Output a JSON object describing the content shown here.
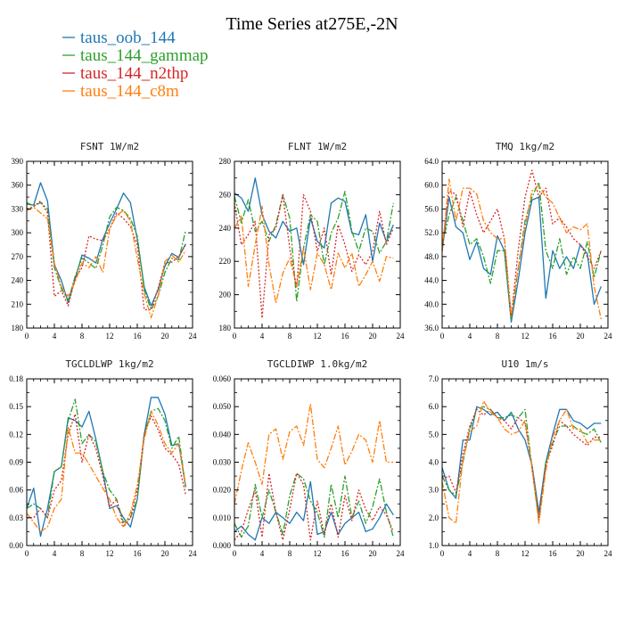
{
  "title": "Time Series at275E,-2N",
  "legend": [
    {
      "name": "taus_oob_144",
      "color": "#1f77b4",
      "dash": "solid"
    },
    {
      "name": "taus_144_gammap",
      "color": "#2ca02c",
      "dash": "dashdot"
    },
    {
      "name": "taus_144_n2thp",
      "color": "#d62728",
      "dash": "dot"
    },
    {
      "name": "taus_144_c8m",
      "color": "#ff7f0e",
      "dash": "dashdot"
    }
  ],
  "chart_data": [
    {
      "type": "line",
      "title": "FSNT   1W/m2",
      "xlim": [
        0,
        24
      ],
      "ylim": [
        180,
        390
      ],
      "xticks": [
        "0",
        "4",
        "8",
        "12",
        "16",
        "20",
        "24"
      ],
      "xtick_values": [
        0,
        4,
        8,
        12,
        16,
        20,
        24
      ],
      "yticks": [
        "180",
        "210",
        "240",
        "270",
        "300",
        "330",
        "360",
        "390"
      ],
      "ytick_values": [
        180,
        210,
        240,
        270,
        300,
        330,
        360,
        390
      ],
      "x": [
        0,
        1,
        2,
        3,
        4,
        5,
        6,
        7,
        8,
        9,
        10,
        11,
        12,
        13,
        14,
        15,
        16,
        17,
        18,
        19,
        20,
        21,
        22,
        23
      ],
      "series": [
        {
          "name": "taus_oob_144",
          "values": [
            336,
            335,
            363,
            340,
            260,
            240,
            212,
            242,
            272,
            268,
            262,
            292,
            312,
            330,
            350,
            338,
            292,
            232,
            208,
            228,
            258,
            274,
            269,
            286
          ]
        },
        {
          "name": "taus_144_gammap",
          "values": [
            338,
            334,
            338,
            330,
            256,
            230,
            215,
            245,
            268,
            262,
            255,
            284,
            320,
            332,
            328,
            318,
            296,
            228,
            203,
            220,
            250,
            268,
            266,
            303
          ]
        },
        {
          "name": "taus_144_n2thp",
          "values": [
            330,
            333,
            340,
            325,
            220,
            227,
            208,
            243,
            256,
            296,
            292,
            290,
            305,
            325,
            318,
            308,
            285,
            203,
            203,
            230,
            262,
            263,
            270,
            285
          ]
        },
        {
          "name": "taus_144_c8m",
          "values": [
            328,
            332,
            325,
            318,
            262,
            232,
            220,
            238,
            262,
            256,
            270,
            250,
            305,
            322,
            328,
            315,
            268,
            223,
            193,
            220,
            264,
            272,
            263,
            278
          ]
        }
      ]
    },
    {
      "type": "line",
      "title": "FLNT   1W/m2",
      "xlim": [
        0,
        24
      ],
      "ylim": [
        180,
        280
      ],
      "xticks": [
        "0",
        "4",
        "8",
        "12",
        "16",
        "20",
        "24"
      ],
      "xtick_values": [
        0,
        4,
        8,
        12,
        16,
        20,
        24
      ],
      "yticks": [
        "180",
        "200",
        "220",
        "240",
        "260",
        "280"
      ],
      "ytick_values": [
        180,
        200,
        220,
        240,
        260,
        280
      ],
      "x": [
        0,
        1,
        2,
        3,
        4,
        5,
        6,
        7,
        8,
        9,
        10,
        11,
        12,
        13,
        14,
        15,
        16,
        17,
        18,
        19,
        20,
        21,
        22,
        23
      ],
      "series": [
        {
          "name": "taus_oob_144",
          "values": [
            261,
            258,
            250,
            270,
            248,
            238,
            234,
            244,
            238,
            240,
            218,
            246,
            232,
            228,
            255,
            258,
            256,
            237,
            236,
            248,
            220,
            243,
            232,
            242
          ]
        },
        {
          "name": "taus_144_gammap",
          "values": [
            259,
            243,
            257,
            238,
            244,
            232,
            242,
            260,
            246,
            196,
            228,
            248,
            244,
            218,
            237,
            246,
            262,
            238,
            226,
            240,
            238,
            225,
            232,
            255
          ]
        },
        {
          "name": "taus_144_n2thp",
          "values": [
            255,
            230,
            236,
            244,
            186,
            236,
            240,
            260,
            228,
            204,
            260,
            250,
            226,
            240,
            212,
            242,
            230,
            214,
            224,
            218,
            226,
            250,
            230,
            240
          ]
        },
        {
          "name": "taus_144_c8m",
          "values": [
            240,
            247,
            205,
            230,
            253,
            218,
            195,
            213,
            222,
            205,
            228,
            203,
            225,
            218,
            203,
            225,
            216,
            225,
            205,
            212,
            220,
            208,
            223,
            222
          ]
        }
      ]
    },
    {
      "type": "line",
      "title": "TMQ   1kg/m2",
      "xlim": [
        0,
        24
      ],
      "ylim": [
        36,
        64
      ],
      "xticks": [
        "0",
        "4",
        "8",
        "12",
        "16",
        "20",
        "24"
      ],
      "xtick_values": [
        0,
        4,
        8,
        12,
        16,
        20,
        24
      ],
      "yticks": [
        "36.0",
        "40.0",
        "44.0",
        "48.0",
        "52.0",
        "56.0",
        "60.0",
        "64.0"
      ],
      "ytick_values": [
        36,
        40,
        44,
        48,
        52,
        56,
        60,
        64
      ],
      "x": [
        0,
        1,
        2,
        3,
        4,
        5,
        6,
        7,
        8,
        9,
        10,
        11,
        12,
        13,
        14,
        15,
        16,
        17,
        18,
        19,
        20,
        21,
        22,
        23
      ],
      "series": [
        {
          "name": "taus_oob_144",
          "values": [
            49,
            58,
            53,
            52,
            47.5,
            50.5,
            46,
            45,
            51.5,
            49,
            37,
            44,
            52,
            57.5,
            58,
            41,
            49,
            46,
            48,
            46,
            50,
            48.5,
            40,
            43
          ]
        },
        {
          "name": "taus_144_gammap",
          "values": [
            50,
            55,
            58,
            54,
            50,
            51,
            48,
            43.5,
            49,
            49,
            37.5,
            46,
            54,
            58,
            60.5,
            49,
            46,
            51,
            45,
            48,
            46,
            50.5,
            44.5,
            49
          ]
        },
        {
          "name": "taus_144_n2thp",
          "values": [
            49,
            59,
            58.5,
            53,
            59,
            55,
            52,
            54,
            56,
            51,
            38,
            49,
            58,
            62.5,
            58,
            59.5,
            53.5,
            54.5,
            53,
            51,
            50,
            48,
            46,
            49
          ]
        },
        {
          "name": "taus_144_c8m",
          "values": [
            49,
            61,
            54,
            59.5,
            59.5,
            58.5,
            54,
            52,
            51,
            51,
            38,
            46,
            53,
            59,
            60,
            58,
            57,
            54.5,
            52,
            53,
            52.5,
            53.5,
            43,
            37.5
          ]
        }
      ]
    },
    {
      "type": "line",
      "title": "TGCLDLWP   1kg/m2",
      "xlim": [
        0,
        24
      ],
      "ylim": [
        0,
        0.18
      ],
      "xticks": [
        "0",
        "4",
        "8",
        "12",
        "16",
        "20",
        "24"
      ],
      "xtick_values": [
        0,
        4,
        8,
        12,
        16,
        20,
        24
      ],
      "yticks": [
        "0.00",
        "0.03",
        "0.06",
        "0.09",
        "0.12",
        "0.15",
        "0.18"
      ],
      "ytick_values": [
        0,
        0.03,
        0.06,
        0.09,
        0.12,
        0.15,
        0.18
      ],
      "x": [
        0,
        1,
        2,
        3,
        4,
        5,
        6,
        7,
        8,
        9,
        10,
        11,
        12,
        13,
        14,
        15,
        16,
        17,
        18,
        19,
        20,
        21,
        22,
        23
      ],
      "series": [
        {
          "name": "taus_oob_144",
          "values": [
            0.04,
            0.062,
            0.01,
            0.04,
            0.08,
            0.085,
            0.138,
            0.135,
            0.128,
            0.145,
            0.115,
            0.08,
            0.04,
            0.043,
            0.03,
            0.02,
            0.05,
            0.12,
            0.16,
            0.16,
            0.142,
            0.108,
            0.11,
            0.063
          ]
        },
        {
          "name": "taus_144_gammap",
          "values": [
            0.04,
            0.045,
            0.04,
            0.03,
            0.08,
            0.085,
            0.135,
            0.158,
            0.11,
            0.12,
            0.112,
            0.08,
            0.06,
            0.05,
            0.025,
            0.03,
            0.05,
            0.12,
            0.145,
            0.148,
            0.135,
            0.105,
            0.118,
            0.063
          ]
        },
        {
          "name": "taus_144_n2thp",
          "values": [
            0.03,
            0.03,
            0.04,
            0.03,
            0.06,
            0.07,
            0.12,
            0.142,
            0.09,
            0.12,
            0.105,
            0.075,
            0.042,
            0.05,
            0.02,
            0.03,
            0.06,
            0.12,
            0.14,
            0.125,
            0.105,
            0.098,
            0.088,
            0.055
          ]
        },
        {
          "name": "taus_144_c8m",
          "values": [
            0.035,
            0.025,
            0.015,
            0.02,
            0.04,
            0.05,
            0.128,
            0.1,
            0.1,
            0.088,
            0.075,
            0.062,
            0.05,
            0.03,
            0.02,
            0.035,
            0.065,
            0.115,
            0.145,
            0.13,
            0.11,
            0.1,
            0.11,
            0.065
          ]
        }
      ]
    },
    {
      "type": "line",
      "title": "TGCLDIWP   1.0kg/m2",
      "xlim": [
        0,
        24
      ],
      "ylim": [
        0,
        0.06
      ],
      "xticks": [
        "0",
        "4",
        "8",
        "12",
        "16",
        "20",
        "24"
      ],
      "xtick_values": [
        0,
        4,
        8,
        12,
        16,
        20,
        24
      ],
      "yticks": [
        "0.000",
        "0.010",
        "0.020",
        "0.030",
        "0.040",
        "0.050",
        "0.060"
      ],
      "ytick_values": [
        0,
        0.01,
        0.02,
        0.03,
        0.04,
        0.05,
        0.06
      ],
      "x": [
        0,
        1,
        2,
        3,
        4,
        5,
        6,
        7,
        8,
        9,
        10,
        11,
        12,
        13,
        14,
        15,
        16,
        17,
        18,
        19,
        20,
        21,
        22,
        23
      ],
      "series": [
        {
          "name": "taus_oob_144",
          "values": [
            0.005,
            0.007,
            0.004,
            0.002,
            0.01,
            0.008,
            0.012,
            0.01,
            0.008,
            0.012,
            0.009,
            0.023,
            0.004,
            0.005,
            0.012,
            0.004,
            0.008,
            0.01,
            0.012,
            0.005,
            0.006,
            0.01,
            0.015,
            0.011
          ]
        },
        {
          "name": "taus_144_gammap",
          "values": [
            0.008,
            0.003,
            0.007,
            0.022,
            0.01,
            0.02,
            0.012,
            0.004,
            0.018,
            0.026,
            0.024,
            0.016,
            0.012,
            0.003,
            0.022,
            0.01,
            0.025,
            0.01,
            0.016,
            0.008,
            0.014,
            0.024,
            0.012,
            0.003
          ]
        },
        {
          "name": "taus_144_n2thp",
          "values": [
            0.002,
            0.005,
            0.013,
            0.02,
            0.003,
            0.026,
            0.012,
            0.002,
            0.013,
            0.026,
            0.022,
            0.002,
            0.016,
            0.004,
            0.015,
            0.003,
            0.018,
            0.009,
            0.02,
            0.013,
            0.009,
            0.014,
            0.011,
            0.005
          ]
        },
        {
          "name": "taus_144_c8m",
          "values": [
            0.015,
            0.027,
            0.037,
            0.03,
            0.022,
            0.04,
            0.042,
            0.031,
            0.041,
            0.043,
            0.036,
            0.051,
            0.031,
            0.028,
            0.035,
            0.043,
            0.029,
            0.034,
            0.04,
            0.038,
            0.03,
            0.045,
            0.03,
            0.03
          ]
        }
      ]
    },
    {
      "type": "line",
      "title": "U10   1m/s",
      "xlim": [
        0,
        24
      ],
      "ylim": [
        1,
        7
      ],
      "xticks": [
        "0",
        "4",
        "8",
        "12",
        "16",
        "20",
        "24"
      ],
      "xtick_values": [
        0,
        4,
        8,
        12,
        16,
        20,
        24
      ],
      "yticks": [
        "1.0",
        "2.0",
        "3.0",
        "4.0",
        "5.0",
        "6.0",
        "7.0"
      ],
      "ytick_values": [
        1,
        2,
        3,
        4,
        5,
        6,
        7
      ],
      "x": [
        0,
        1,
        2,
        3,
        4,
        5,
        6,
        7,
        8,
        9,
        10,
        11,
        12,
        13,
        14,
        15,
        16,
        17,
        18,
        19,
        20,
        21,
        22,
        23
      ],
      "series": [
        {
          "name": "taus_oob_144",
          "values": [
            3.8,
            3.0,
            2.7,
            4.8,
            4.8,
            6.0,
            5.9,
            5.7,
            5.8,
            5.5,
            5.8,
            5.2,
            4.8,
            3.9,
            2.2,
            4.0,
            5.0,
            5.9,
            5.9,
            5.5,
            5.4,
            5.2,
            5.4,
            5.4
          ]
        },
        {
          "name": "taus_144_gammap",
          "values": [
            3.5,
            3.0,
            2.8,
            4.0,
            5.2,
            5.9,
            6.0,
            5.9,
            5.6,
            5.6,
            5.7,
            5.6,
            5.9,
            3.8,
            1.9,
            4.0,
            4.7,
            5.3,
            5.3,
            5.3,
            5.1,
            5.0,
            5.2,
            4.7
          ]
        },
        {
          "name": "taus_144_n2thp",
          "values": [
            3.4,
            3.5,
            2.9,
            4.3,
            5.3,
            5.9,
            5.7,
            5.9,
            5.6,
            5.5,
            5.2,
            5.6,
            5.4,
            3.8,
            2.0,
            3.9,
            4.6,
            5.5,
            5.3,
            5.0,
            4.8,
            4.6,
            4.9,
            4.9
          ]
        },
        {
          "name": "taus_144_c8m",
          "values": [
            3.3,
            2.0,
            1.8,
            4.1,
            5.1,
            5.3,
            6.2,
            5.8,
            5.6,
            5.2,
            5.0,
            5.1,
            5.5,
            3.8,
            1.8,
            3.7,
            4.9,
            5.5,
            5.9,
            5.2,
            5.2,
            4.7,
            4.8,
            4.8
          ]
        }
      ]
    }
  ]
}
